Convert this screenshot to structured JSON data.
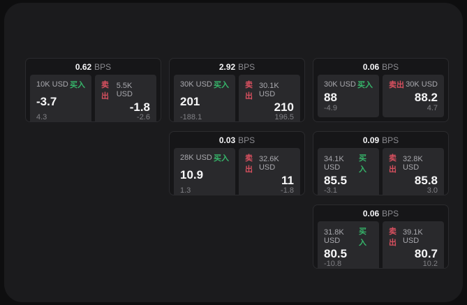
{
  "labels": {
    "bps_unit": "BPS",
    "buy": "买入",
    "sell": "卖出"
  },
  "colors": {
    "buy": "#36b56a",
    "sell": "#d8505f"
  },
  "cards": [
    {
      "bps": "0.62",
      "col": 1,
      "row": 1,
      "buy": {
        "amount": "10K USD",
        "value": "-3.7",
        "sub": "4.3"
      },
      "sell": {
        "amount": "5.5K USD",
        "value": "-1.8",
        "sub": "-2.6"
      }
    },
    {
      "bps": "2.92",
      "col": 2,
      "row": 1,
      "buy": {
        "amount": "30K USD",
        "value": "201",
        "sub": "-188.1"
      },
      "sell": {
        "amount": "30.1K USD",
        "value": "210",
        "sub": "196.5"
      }
    },
    {
      "bps": "0.06",
      "col": 3,
      "row": 1,
      "buy": {
        "amount": "30K USD",
        "value": "88",
        "sub": "-4.9"
      },
      "sell": {
        "amount": "30K USD",
        "value": "88.2",
        "sub": "4.7"
      }
    },
    {
      "bps": "0.03",
      "col": 2,
      "row": 2,
      "buy": {
        "amount": "28K USD",
        "value": "10.9",
        "sub": "1.3"
      },
      "sell": {
        "amount": "32.6K USD",
        "value": "11",
        "sub": "-1.8"
      }
    },
    {
      "bps": "0.09",
      "col": 3,
      "row": 2,
      "buy": {
        "amount": "34.1K USD",
        "value": "85.5",
        "sub": "-3.1"
      },
      "sell": {
        "amount": "32.8K USD",
        "value": "85.8",
        "sub": "3.0"
      }
    },
    {
      "bps": "0.06",
      "col": 3,
      "row": 3,
      "buy": {
        "amount": "31.8K USD",
        "value": "80.5",
        "sub": "-10.8"
      },
      "sell": {
        "amount": "39.1K USD",
        "value": "80.7",
        "sub": "10.2"
      }
    }
  ]
}
